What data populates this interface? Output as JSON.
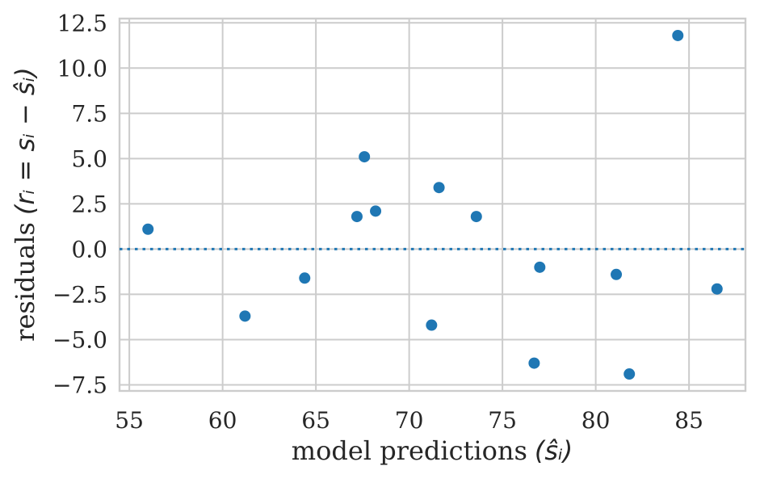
{
  "chart_data": {
    "type": "scatter",
    "title": "",
    "xlabel": "model predictions (ŝᵢ)",
    "ylabel": "residuals (rᵢ = sᵢ − ŝᵢ)",
    "xlabel_parts": {
      "text": "model predictions",
      "math": "(ŝᵢ)"
    },
    "ylabel_parts": {
      "text": "residuals",
      "math": "(rᵢ = sᵢ − ŝᵢ)"
    },
    "x": [
      56.0,
      61.2,
      64.4,
      67.2,
      67.6,
      68.2,
      71.2,
      71.6,
      73.6,
      76.7,
      77.0,
      81.1,
      81.8,
      84.4,
      86.5
    ],
    "y": [
      1.1,
      -3.7,
      -1.6,
      1.8,
      5.1,
      2.1,
      -4.2,
      3.4,
      1.8,
      -6.3,
      -1.0,
      -1.4,
      -6.9,
      11.8,
      -2.2
    ],
    "xticks": [
      55,
      60,
      65,
      70,
      75,
      80,
      85
    ],
    "xtick_labels": [
      "55",
      "60",
      "65",
      "70",
      "75",
      "80",
      "85"
    ],
    "yticks": [
      -7.5,
      -5.0,
      -2.5,
      0.0,
      2.5,
      5.0,
      7.5,
      10.0,
      12.5
    ],
    "ytick_labels": [
      "−7.5",
      "−5.0",
      "−2.5",
      "0.0",
      "2.5",
      "5.0",
      "7.5",
      "10.0",
      "12.5"
    ],
    "xlim": [
      54.475,
      88.025
    ],
    "ylim": [
      -7.835,
      12.735
    ],
    "grid": true,
    "legend": false,
    "zero_line_y": 0,
    "colors": {
      "marker": "#1f77b4",
      "zero_line": "#1f77b4",
      "grid": "#cccccc",
      "axes_edge": "#cccccc",
      "text": "#262626",
      "background": "#ffffff"
    }
  }
}
